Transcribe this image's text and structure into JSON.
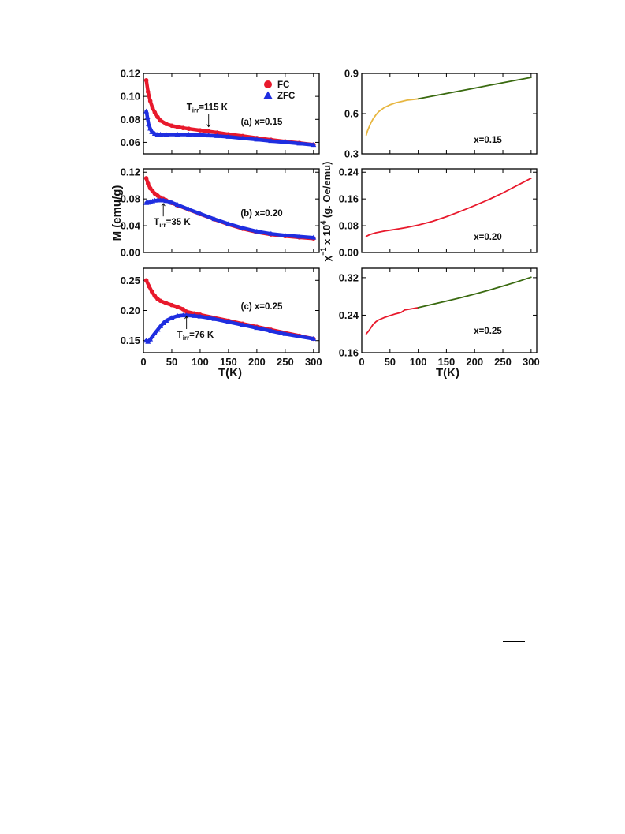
{
  "chart_data": [
    {
      "panel": "left-a",
      "type": "scatter",
      "annotation": "(a) x=0.15",
      "tirr": {
        "label_main": "T",
        "label_sub": "irr",
        "label_rest": "=115 K",
        "value": 115
      },
      "xlim": [
        0,
        310
      ],
      "ylim": [
        0.05,
        0.12
      ],
      "yticks": [
        0.06,
        0.08,
        0.1,
        0.12
      ],
      "ytick_labels": [
        "0.06",
        "0.08",
        "0.10",
        "0.12"
      ],
      "xticks": [
        0,
        50,
        100,
        150,
        200,
        250,
        300
      ],
      "legend": {
        "placement": "top-right",
        "entries": [
          {
            "name": "FC",
            "marker": "circle",
            "color": "#e8192c"
          },
          {
            "name": "ZFC",
            "marker": "triangle",
            "color": "#1f2ee0"
          }
        ]
      },
      "series": [
        {
          "name": "FC",
          "color": "#e8192c",
          "x": [
            5,
            8,
            12,
            16,
            20,
            25,
            30,
            40,
            50,
            60,
            70,
            80,
            100,
            115,
            130,
            150,
            175,
            200,
            225,
            250,
            275,
            300
          ],
          "y": [
            0.114,
            0.104,
            0.096,
            0.09,
            0.086,
            0.082,
            0.079,
            0.076,
            0.0745,
            0.0735,
            0.0725,
            0.0718,
            0.0705,
            0.0695,
            0.0685,
            0.067,
            0.0655,
            0.0638,
            0.0622,
            0.0608,
            0.0595,
            0.058
          ]
        },
        {
          "name": "ZFC",
          "color": "#1f2ee0",
          "x": [
            5,
            7,
            9,
            12,
            15,
            20,
            25,
            30,
            40,
            60,
            80,
            100,
            115,
            130,
            150,
            175,
            200,
            225,
            250,
            275,
            300
          ],
          "y": [
            0.087,
            0.082,
            0.076,
            0.072,
            0.069,
            0.0675,
            0.0668,
            0.0668,
            0.0668,
            0.0668,
            0.0668,
            0.0665,
            0.066,
            0.0655,
            0.0648,
            0.0636,
            0.0624,
            0.0612,
            0.0601,
            0.059,
            0.0578
          ]
        }
      ]
    },
    {
      "panel": "left-b",
      "type": "scatter",
      "annotation": "(b) x=0.20",
      "tirr": {
        "label_main": "T",
        "label_sub": "irr",
        "label_rest": "=35 K",
        "value": 35
      },
      "xlim": [
        0,
        310
      ],
      "ylim": [
        0.0,
        0.125
      ],
      "yticks": [
        0.0,
        0.04,
        0.08,
        0.12
      ],
      "ytick_labels": [
        "0.00",
        "0.04",
        "0.08",
        "0.12"
      ],
      "xticks": [
        0,
        50,
        100,
        150,
        200,
        250,
        300
      ],
      "series": [
        {
          "name": "FC",
          "color": "#e8192c",
          "x": [
            5,
            8,
            12,
            16,
            20,
            25,
            30,
            35,
            40,
            50,
            60,
            80,
            100,
            125,
            150,
            175,
            200,
            225,
            250,
            275,
            300
          ],
          "y": [
            0.111,
            0.103,
            0.096,
            0.092,
            0.088,
            0.085,
            0.082,
            0.08,
            0.078,
            0.074,
            0.0705,
            0.064,
            0.0575,
            0.0495,
            0.042,
            0.0355,
            0.0305,
            0.027,
            0.0245,
            0.0225,
            0.021
          ]
        },
        {
          "name": "ZFC",
          "color": "#1f2ee0",
          "x": [
            5,
            8,
            12,
            16,
            20,
            25,
            30,
            35,
            40,
            50,
            60,
            80,
            100,
            125,
            150,
            175,
            200,
            225,
            250,
            275,
            300
          ],
          "y": [
            0.074,
            0.0745,
            0.0755,
            0.0765,
            0.0775,
            0.078,
            0.078,
            0.0778,
            0.077,
            0.0745,
            0.0712,
            0.0645,
            0.058,
            0.05,
            0.0428,
            0.0365,
            0.0315,
            0.028,
            0.0255,
            0.0238,
            0.0222
          ]
        }
      ]
    },
    {
      "panel": "left-c",
      "type": "scatter",
      "annotation": "(c) x=0.25",
      "tirr": {
        "label_main": "T",
        "label_sub": "irr",
        "label_rest": "=76 K",
        "value": 76
      },
      "xlim": [
        0,
        310
      ],
      "ylim": [
        0.13,
        0.27
      ],
      "yticks": [
        0.15,
        0.2,
        0.25
      ],
      "ytick_labels": [
        "0.15",
        "0.20",
        "0.25"
      ],
      "xticks": [
        0,
        50,
        100,
        150,
        200,
        250,
        300
      ],
      "series": [
        {
          "name": "FC",
          "color": "#e8192c",
          "x": [
            5,
            10,
            15,
            20,
            25,
            30,
            40,
            50,
            60,
            70,
            76,
            90,
            100,
            125,
            150,
            175,
            200,
            225,
            250,
            275,
            300
          ],
          "y": [
            0.25,
            0.24,
            0.231,
            0.224,
            0.219,
            0.216,
            0.212,
            0.209,
            0.206,
            0.202,
            0.198,
            0.195,
            0.193,
            0.188,
            0.183,
            0.178,
            0.173,
            0.168,
            0.163,
            0.158,
            0.153
          ]
        },
        {
          "name": "ZFC",
          "color": "#1f2ee0",
          "x": [
            5,
            8,
            12,
            16,
            20,
            25,
            30,
            35,
            40,
            50,
            60,
            70,
            76,
            90,
            100,
            125,
            150,
            175,
            200,
            225,
            250,
            275,
            300
          ],
          "y": [
            0.15,
            0.148,
            0.152,
            0.157,
            0.162,
            0.168,
            0.174,
            0.179,
            0.183,
            0.188,
            0.191,
            0.192,
            0.192,
            0.191,
            0.19,
            0.186,
            0.181,
            0.176,
            0.171,
            0.166,
            0.161,
            0.157,
            0.153
          ]
        }
      ]
    },
    {
      "panel": "right-a",
      "type": "line",
      "annotation": "x=0.15",
      "xlim": [
        0,
        310
      ],
      "ylim": [
        0.3,
        0.9
      ],
      "yticks": [
        0.3,
        0.6,
        0.9
      ],
      "ytick_labels": [
        "0.3",
        "0.6",
        "0.9"
      ],
      "xticks": [
        0,
        50,
        100,
        150,
        200,
        250,
        300
      ],
      "series": [
        {
          "color": "#e7b640",
          "x": [
            8,
            10,
            13,
            16,
            20,
            25,
            30,
            40,
            50,
            60,
            70,
            80,
            90,
            100
          ],
          "y": [
            0.44,
            0.47,
            0.5,
            0.53,
            0.56,
            0.59,
            0.615,
            0.645,
            0.665,
            0.68,
            0.69,
            0.7,
            0.705,
            0.71
          ]
        },
        {
          "color": "#3a6a10",
          "x": [
            100,
            125,
            150,
            175,
            200,
            225,
            250,
            275,
            300
          ],
          "y": [
            0.71,
            0.73,
            0.75,
            0.77,
            0.79,
            0.81,
            0.83,
            0.85,
            0.87
          ]
        }
      ]
    },
    {
      "panel": "right-b",
      "type": "line",
      "annotation": "x=0.20",
      "xlim": [
        0,
        310
      ],
      "ylim": [
        0.0,
        0.25
      ],
      "yticks": [
        0.0,
        0.08,
        0.16,
        0.24
      ],
      "ytick_labels": [
        "0.00",
        "0.08",
        "0.16",
        "0.24"
      ],
      "xticks": [
        0,
        50,
        100,
        150,
        200,
        250,
        300
      ],
      "series": [
        {
          "color": "#e8192c",
          "x": [
            8,
            15,
            25,
            40,
            60,
            80,
            100,
            125,
            150,
            175,
            200,
            225,
            250,
            275,
            300
          ],
          "y": [
            0.048,
            0.054,
            0.059,
            0.064,
            0.069,
            0.075,
            0.082,
            0.093,
            0.107,
            0.123,
            0.14,
            0.158,
            0.178,
            0.2,
            0.222
          ]
        }
      ]
    },
    {
      "panel": "right-c",
      "type": "line",
      "annotation": "x=0.25",
      "xlim": [
        0,
        310
      ],
      "ylim": [
        0.16,
        0.34
      ],
      "yticks": [
        0.16,
        0.24,
        0.32
      ],
      "ytick_labels": [
        "0.16",
        "0.24",
        "0.32"
      ],
      "xticks": [
        0,
        50,
        100,
        150,
        200,
        250,
        300
      ],
      "series": [
        {
          "color": "#e8192c",
          "x": [
            8,
            12,
            16,
            20,
            25,
            30,
            40,
            50,
            60,
            70,
            76,
            90,
            100
          ],
          "y": [
            0.2,
            0.206,
            0.213,
            0.22,
            0.226,
            0.23,
            0.235,
            0.239,
            0.243,
            0.246,
            0.251,
            0.254,
            0.256
          ]
        },
        {
          "color": "#3a6a10",
          "x": [
            100,
            125,
            150,
            175,
            200,
            225,
            250,
            275,
            300
          ],
          "y": [
            0.256,
            0.263,
            0.27,
            0.277,
            0.285,
            0.293,
            0.302,
            0.311,
            0.321
          ]
        }
      ]
    }
  ],
  "xtick_labels": [
    "0",
    "50",
    "100",
    "150",
    "200",
    "250",
    "300"
  ],
  "left_xlabel": "T(K)",
  "right_xlabel": "T(K)",
  "left_ylabel": "M (emu/g)",
  "right_ylabel": {
    "chi": "χ",
    "exp": "−1",
    "mid": " x 10",
    "exp2": "4",
    "rest": " (g. Oe/emu)"
  }
}
